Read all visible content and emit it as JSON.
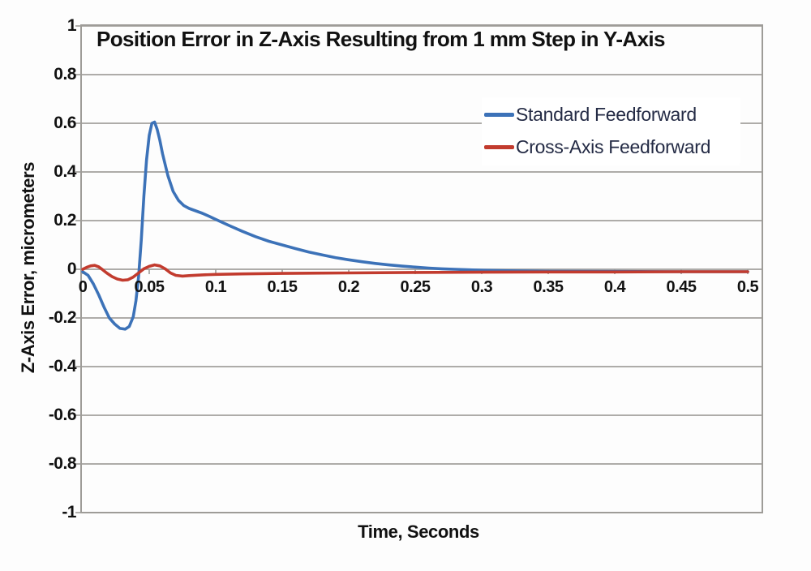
{
  "figure": {
    "title": "Position Error in Z-Axis Resulting from 1 mm Step in Y-Axis",
    "x_axis_title": "Time, Seconds",
    "y_axis_title": "Z-Axis Error, micrometers"
  },
  "colors": {
    "background": "#fdfdfd",
    "grid": "#a3a19d",
    "border": "#9e9c98",
    "text": "#111111",
    "legend_text": "#242b45",
    "series_blue": "#3c72b8",
    "series_red": "#c23b2e"
  },
  "chart_data": {
    "type": "line",
    "title": "Position Error in Z-Axis Resulting from 1 mm Step in Y-Axis",
    "xlabel": "Time, Seconds",
    "ylabel": "Z-Axis Error, micrometers",
    "xlim": [
      0,
      0.5
    ],
    "ylim": [
      -1,
      1
    ],
    "x_ticks": [
      0,
      0.05,
      0.1,
      0.15,
      0.2,
      0.25,
      0.3,
      0.35,
      0.4,
      0.45,
      0.5
    ],
    "x_tick_labels": [
      "0",
      "0.05",
      "0.1",
      "0.15",
      "0.2",
      "0.25",
      "0.3",
      "0.35",
      "0.4",
      "0.45",
      "0.5"
    ],
    "y_ticks": [
      1,
      0.8,
      0.6,
      0.4,
      0.2,
      0,
      -0.2,
      -0.4,
      -0.6,
      -0.8,
      -1
    ],
    "y_tick_labels": [
      "1",
      "0.8",
      "0.6",
      "0.4",
      "0.2",
      "0",
      "-0.2",
      "-0.4",
      "-0.6",
      "-0.8",
      "-1"
    ],
    "grid": "horizontal",
    "legend_position": "inside upper right",
    "series": [
      {
        "name": "Standard Feedforward",
        "color": "#3c72b8",
        "points": [
          [
            0,
            -0.01
          ],
          [
            0.004,
            -0.025
          ],
          [
            0.008,
            -0.06
          ],
          [
            0.012,
            -0.105
          ],
          [
            0.016,
            -0.155
          ],
          [
            0.02,
            -0.2
          ],
          [
            0.024,
            -0.225
          ],
          [
            0.028,
            -0.243
          ],
          [
            0.032,
            -0.246
          ],
          [
            0.035,
            -0.235
          ],
          [
            0.038,
            -0.195
          ],
          [
            0.04,
            -0.13
          ],
          [
            0.042,
            -0.03
          ],
          [
            0.044,
            0.12
          ],
          [
            0.046,
            0.3
          ],
          [
            0.048,
            0.45
          ],
          [
            0.05,
            0.55
          ],
          [
            0.052,
            0.6
          ],
          [
            0.054,
            0.605
          ],
          [
            0.056,
            0.575
          ],
          [
            0.058,
            0.53
          ],
          [
            0.06,
            0.475
          ],
          [
            0.064,
            0.385
          ],
          [
            0.068,
            0.32
          ],
          [
            0.072,
            0.283
          ],
          [
            0.076,
            0.262
          ],
          [
            0.08,
            0.25
          ],
          [
            0.085,
            0.24
          ],
          [
            0.09,
            0.23
          ],
          [
            0.095,
            0.218
          ],
          [
            0.1,
            0.205
          ],
          [
            0.11,
            0.18
          ],
          [
            0.12,
            0.156
          ],
          [
            0.13,
            0.134
          ],
          [
            0.14,
            0.115
          ],
          [
            0.15,
            0.1
          ],
          [
            0.16,
            0.085
          ],
          [
            0.17,
            0.071
          ],
          [
            0.18,
            0.059
          ],
          [
            0.19,
            0.048
          ],
          [
            0.2,
            0.039
          ],
          [
            0.21,
            0.031
          ],
          [
            0.22,
            0.024
          ],
          [
            0.23,
            0.018
          ],
          [
            0.24,
            0.013
          ],
          [
            0.25,
            0.009
          ],
          [
            0.26,
            0.005
          ],
          [
            0.27,
            0.002
          ],
          [
            0.28,
            0.0
          ],
          [
            0.3,
            -0.004
          ],
          [
            0.32,
            -0.006
          ],
          [
            0.35,
            -0.008
          ],
          [
            0.4,
            -0.009
          ],
          [
            0.45,
            -0.01
          ],
          [
            0.5,
            -0.01
          ]
        ]
      },
      {
        "name": "Cross-Axis Feedforward",
        "color": "#c23b2e",
        "points": [
          [
            0,
            0
          ],
          [
            0.003,
            0.008
          ],
          [
            0.006,
            0.014
          ],
          [
            0.009,
            0.016
          ],
          [
            0.012,
            0.01
          ],
          [
            0.015,
            -0.002
          ],
          [
            0.018,
            -0.015
          ],
          [
            0.022,
            -0.03
          ],
          [
            0.026,
            -0.04
          ],
          [
            0.03,
            -0.045
          ],
          [
            0.034,
            -0.043
          ],
          [
            0.038,
            -0.032
          ],
          [
            0.042,
            -0.015
          ],
          [
            0.046,
            0.002
          ],
          [
            0.05,
            0.012
          ],
          [
            0.054,
            0.018
          ],
          [
            0.058,
            0.014
          ],
          [
            0.062,
            0.002
          ],
          [
            0.066,
            -0.015
          ],
          [
            0.07,
            -0.025
          ],
          [
            0.075,
            -0.028
          ],
          [
            0.08,
            -0.026
          ],
          [
            0.09,
            -0.023
          ],
          [
            0.1,
            -0.021
          ],
          [
            0.12,
            -0.019
          ],
          [
            0.15,
            -0.017
          ],
          [
            0.2,
            -0.015
          ],
          [
            0.25,
            -0.013
          ],
          [
            0.3,
            -0.012
          ],
          [
            0.35,
            -0.011
          ],
          [
            0.4,
            -0.011
          ],
          [
            0.45,
            -0.01
          ],
          [
            0.5,
            -0.01
          ]
        ]
      }
    ]
  }
}
